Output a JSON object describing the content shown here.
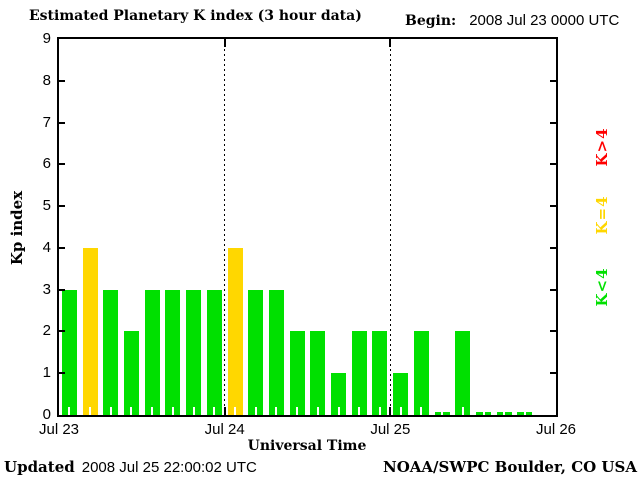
{
  "header": {
    "title": "Estimated Planetary K index (3 hour data)",
    "begin_label": "Begin:",
    "begin_value": "2008 Jul 23 0000 UTC"
  },
  "y_axis": {
    "label": "Kp index"
  },
  "x_axis": {
    "label": "Universal Time"
  },
  "legend": {
    "items": [
      {
        "label": "K>4",
        "color": "#FF0000"
      },
      {
        "label": "K=4",
        "color": "#FFD700"
      },
      {
        "label": "K<4",
        "color": "#00E000"
      }
    ]
  },
  "footer": {
    "updated_label": "Updated",
    "updated_value": "2008 Jul 25 22:00:02 UTC",
    "source": "NOAA/SWPC Boulder, CO USA"
  },
  "colors": {
    "k_lt4": "#00E000",
    "k_eq4": "#FFD700",
    "k_gt4": "#FF0000",
    "axis": "#000000",
    "background": "#FFFFFF"
  },
  "chart_data": {
    "type": "bar",
    "title": "Estimated Planetary K index (3 hour data)",
    "xlabel": "Universal Time",
    "ylabel": "Kp index",
    "ylim": [
      0,
      9
    ],
    "y_ticks": [
      0,
      1,
      2,
      3,
      4,
      5,
      6,
      7,
      8,
      9
    ],
    "x_tick_labels": [
      "Jul 23",
      "Jul 24",
      "Jul 25",
      "Jul 26"
    ],
    "interval_hours": 3,
    "bars_per_day": 8,
    "total_slots": 24,
    "series": [
      {
        "date": "2008 Jul 23",
        "values": [
          3,
          4,
          3,
          2,
          3,
          3,
          3,
          3
        ]
      },
      {
        "date": "2008 Jul 24",
        "values": [
          4,
          3,
          3,
          2,
          2,
          1,
          2,
          2
        ]
      },
      {
        "date": "2008 Jul 25",
        "values": [
          1,
          2,
          0,
          2,
          0,
          0,
          0
        ]
      }
    ],
    "color_rule": {
      "lt4": "#00E000",
      "eq4": "#FFD700",
      "gt4": "#FF0000"
    },
    "legend_position": "right-rotated",
    "grid": "dotted vertical lines at day boundaries"
  }
}
